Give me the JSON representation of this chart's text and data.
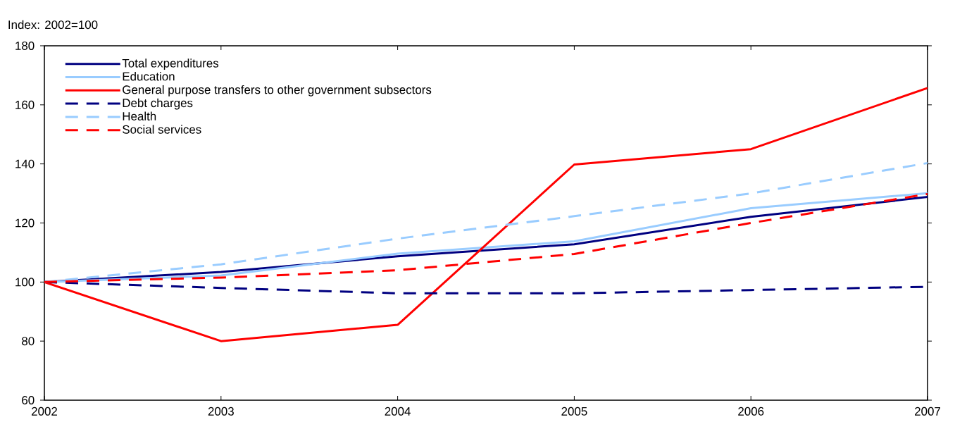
{
  "chart_data": {
    "type": "line",
    "ylabel": "Index: 2002=100",
    "x": [
      2002,
      2003,
      2004,
      2005,
      2006,
      2007
    ],
    "xlim": [
      2002,
      2007
    ],
    "xticks": [
      2002,
      2003,
      2004,
      2005,
      2006,
      2007
    ],
    "ylim": [
      60,
      180
    ],
    "yticks": [
      60,
      80,
      100,
      120,
      140,
      160,
      180
    ],
    "grid": false,
    "legend": "top left",
    "marker": "none",
    "series": [
      {
        "name": "Total expenditures",
        "color": "#000080",
        "line_style": "solid",
        "values": [
          100,
          103.4,
          108.7,
          112.8,
          122.1,
          128.8
        ]
      },
      {
        "name": "Education",
        "color": "#99ccff",
        "line_style": "solid",
        "values": [
          100,
          102.2,
          109.6,
          113.8,
          125,
          130.1
        ]
      },
      {
        "name": "General purpose transfers to other government subsectors",
        "color": "#ff0000",
        "line_style": "solid",
        "values": [
          100,
          80,
          85.5,
          139.8,
          145,
          165.7
        ]
      },
      {
        "name": "Debt charges",
        "color": "#000080",
        "line_style": "dashed",
        "values": [
          100,
          98,
          96.2,
          96.2,
          97.3,
          98.4
        ]
      },
      {
        "name": "Health",
        "color": "#99ccff",
        "line_style": "dashed",
        "values": [
          100,
          106,
          114.7,
          122.3,
          130,
          140.3
        ]
      },
      {
        "name": "Social services",
        "color": "#ff0000",
        "line_style": "dashed",
        "values": [
          100,
          101.5,
          104,
          109.5,
          120,
          129.8
        ]
      }
    ]
  }
}
